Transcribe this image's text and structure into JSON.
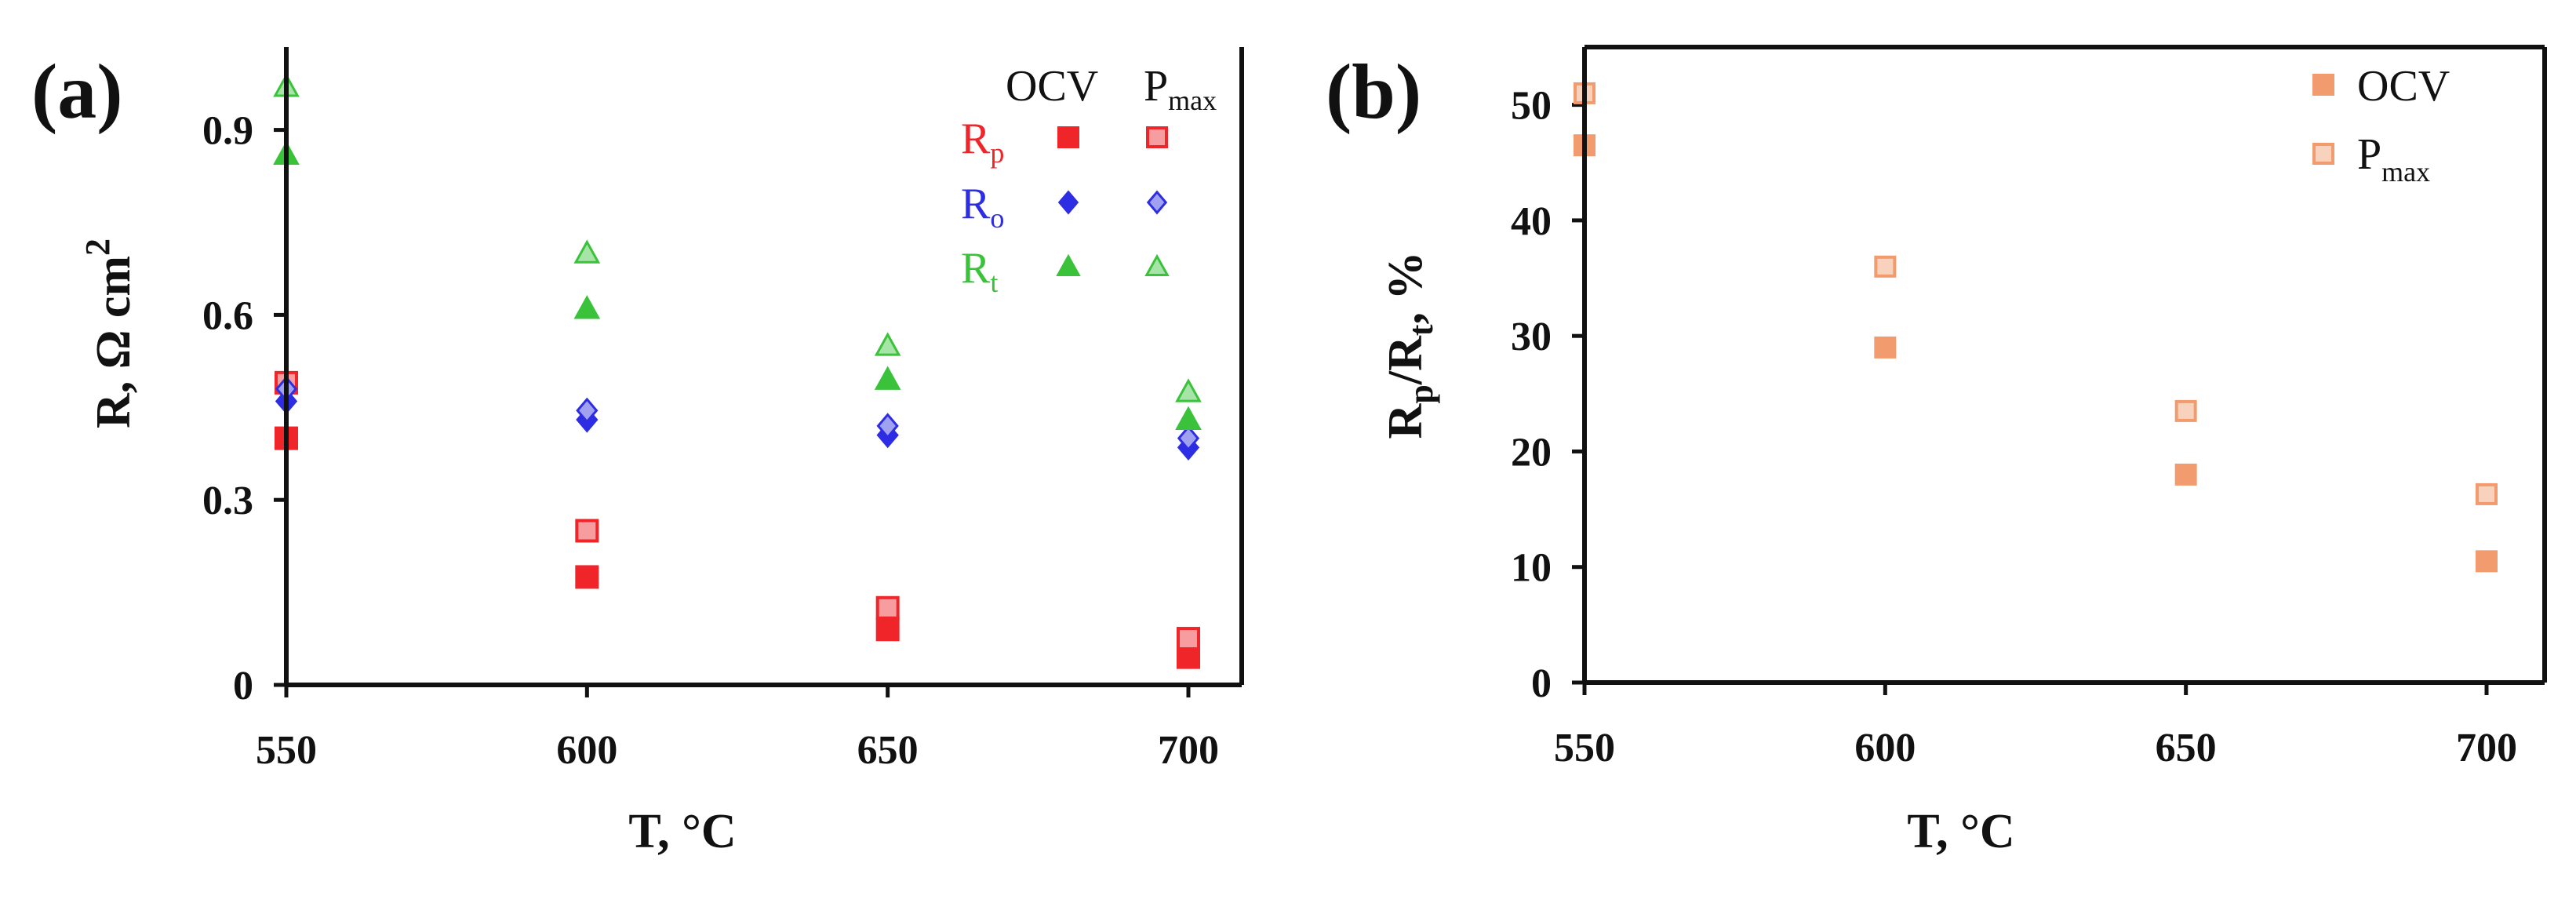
{
  "figure": {
    "panel_a_label": "(a)",
    "panel_b_label": "(b)"
  },
  "chart_data": [
    {
      "panel": "(a)",
      "type": "scatter",
      "xlabel": "T, °C",
      "ylabel": "R, Ω cm",
      "ylabel_sup": "2",
      "xlim": [
        550,
        700
      ],
      "ylim": [
        0,
        1.0
      ],
      "xticks": [
        550,
        600,
        650,
        700
      ],
      "yticks": [
        0,
        0.3,
        0.6,
        0.9
      ],
      "ytick_labels": [
        "0",
        "0.3",
        "0.6",
        "0.9"
      ],
      "grid": false,
      "legend_position": "top-right",
      "legend_headers": [
        "OCV",
        "P",
        "max"
      ],
      "series": [
        {
          "name": "R_p",
          "label": "R",
          "sub": "p",
          "condition": "OCV",
          "marker": "square",
          "color": "#f0252a",
          "filled": true,
          "x": [
            550,
            600,
            650,
            700
          ],
          "y": [
            0.4,
            0.175,
            0.09,
            0.045
          ]
        },
        {
          "name": "R_p",
          "label": "R",
          "sub": "p",
          "condition": "P_max",
          "marker": "square",
          "color": "#f0252a",
          "filled": false,
          "x": [
            550,
            600,
            650,
            700
          ],
          "y": [
            0.49,
            0.25,
            0.125,
            0.075
          ]
        },
        {
          "name": "R_o",
          "label": "R",
          "sub": "o",
          "condition": "OCV",
          "marker": "diamond",
          "color": "#2d2de3",
          "filled": true,
          "x": [
            550,
            600,
            650,
            700
          ],
          "y": [
            0.46,
            0.43,
            0.405,
            0.385
          ]
        },
        {
          "name": "R_o",
          "label": "R",
          "sub": "o",
          "condition": "P_max",
          "marker": "diamond",
          "color": "#2d2de3",
          "filled": false,
          "x": [
            550,
            600,
            650,
            700
          ],
          "y": [
            0.48,
            0.445,
            0.42,
            0.4
          ]
        },
        {
          "name": "R_t",
          "label": "R",
          "sub": "t",
          "condition": "OCV",
          "marker": "triangle",
          "color": "#3bc23b",
          "filled": true,
          "x": [
            550,
            600,
            650,
            700
          ],
          "y": [
            0.86,
            0.61,
            0.495,
            0.43
          ]
        },
        {
          "name": "R_t",
          "label": "R",
          "sub": "t",
          "condition": "P_max",
          "marker": "triangle",
          "color": "#3bc23b",
          "filled": false,
          "x": [
            550,
            600,
            650,
            700
          ],
          "y": [
            0.97,
            0.7,
            0.55,
            0.475
          ]
        }
      ]
    },
    {
      "panel": "(b)",
      "type": "scatter",
      "xlabel": "T, °C",
      "ylabel_parts": [
        "R",
        "p",
        "/R",
        "t",
        ", %"
      ],
      "xlim": [
        550,
        700
      ],
      "ylim": [
        0,
        55
      ],
      "xticks": [
        550,
        600,
        650,
        700
      ],
      "yticks": [
        0,
        10,
        20,
        30,
        40,
        50
      ],
      "grid": false,
      "legend_position": "top-right",
      "series": [
        {
          "name": "OCV",
          "label": "OCV",
          "sub": "",
          "marker": "square",
          "color": "#f29b6e",
          "filled": true,
          "x": [
            550,
            600,
            650,
            700
          ],
          "y": [
            46.5,
            29.0,
            18.0,
            10.5
          ]
        },
        {
          "name": "P_max",
          "label": "P",
          "sub": "max",
          "marker": "square",
          "color": "#f29b6e",
          "filled": false,
          "x": [
            550,
            600,
            650,
            700
          ],
          "y": [
            51.0,
            36.0,
            23.5,
            16.3
          ]
        }
      ]
    }
  ]
}
